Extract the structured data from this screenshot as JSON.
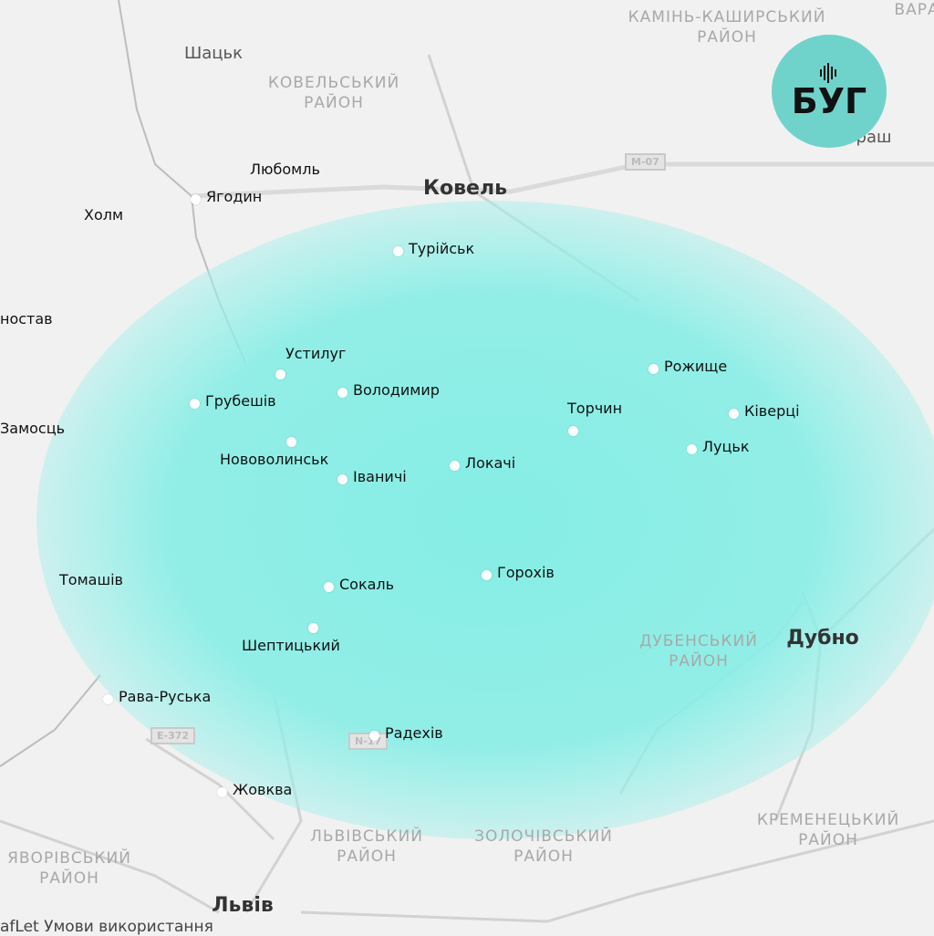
{
  "brand": {
    "logo_text": "БУГ",
    "logo_color": "#6fd3cb",
    "glow_color": "#8ff0e8"
  },
  "regions": [
    {
      "line1": "КОВЕЛЬСЬКИЙ",
      "line2": "РАЙОН"
    },
    {
      "line1": "КАМІНЬ-КАШИРСЬКИЙ",
      "line2": "РАЙОН"
    },
    {
      "line1": "ВАРА",
      "line2": ""
    },
    {
      "line1": "ДУБЕНСЬКИЙ",
      "line2": "РАЙОН"
    },
    {
      "line1": "КРЕМЕНЕЦЬКИЙ",
      "line2": "РАЙОН"
    },
    {
      "line1": "ЛЬВІВСЬКИЙ",
      "line2": "РАЙОН"
    },
    {
      "line1": "ЗОЛОЧІВСЬКИЙ",
      "line2": "РАЙОН"
    },
    {
      "line1": "ЯВОРІВСЬКИЙ",
      "line2": "РАЙОН"
    }
  ],
  "base_cities": [
    "Шацьк",
    "Ковель",
    "Дубно",
    "Львів",
    "раш"
  ],
  "road_shields": [
    "M-07",
    "E-372",
    "N-17"
  ],
  "cities": [
    "Любомль",
    "Холм",
    "Ягодин",
    "Турійськ",
    "ностав",
    "Устилуг",
    "Грубешів",
    "Володимир",
    "Замосць",
    "Нововолинськ",
    "Іваничі",
    "Локачі",
    "Торчин",
    "Рожище",
    "Ківерці",
    "Луцьк",
    "Горохів",
    "Сокаль",
    "Томашів",
    "Шептицький",
    "Рава-Руська",
    "Радехів",
    "Жовква"
  ],
  "attribution": "afLet  Умови використання"
}
